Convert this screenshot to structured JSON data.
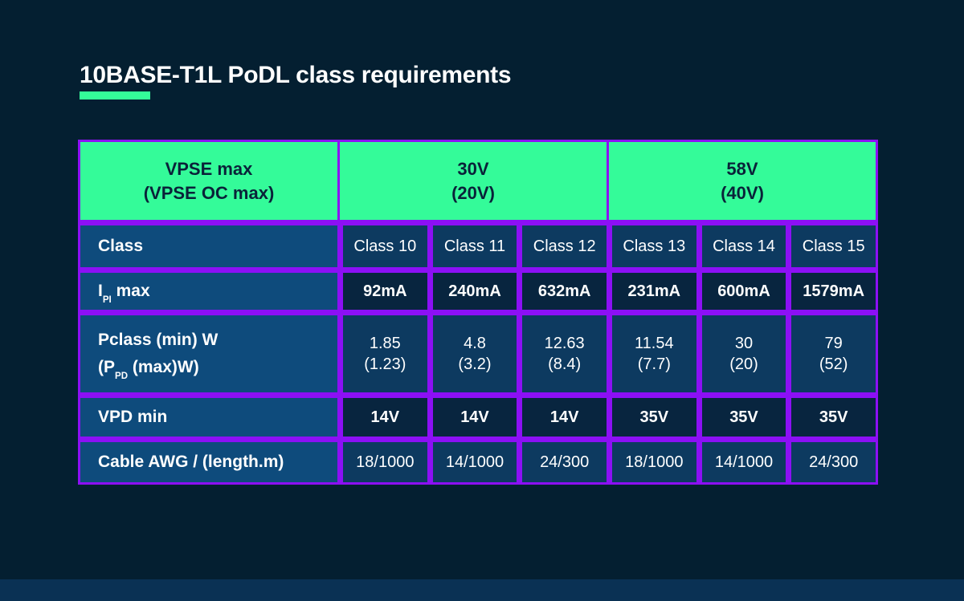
{
  "title": "10BASE-T1L PoDL class requirements",
  "colors": {
    "bg": "#041f31",
    "strip": "#0a3154",
    "green": "#34fb99",
    "purple": "#8c10f5",
    "labelblue": "#0e4b7c",
    "lightcell": "#0d3a60",
    "darkcell": "#08253f",
    "headtext": "#0a2239",
    "white": "#ffffff"
  },
  "table": {
    "header": {
      "col1": "VPSE max\n(VPSE OC max)",
      "col2": "30V\n(20V)",
      "col3": "58V\n(40V)"
    },
    "rows": [
      {
        "label": {
          "text": "Class"
        },
        "values": [
          "Class 10",
          "Class 11",
          "Class 12",
          "Class 13",
          "Class 14",
          "Class 15"
        ]
      },
      {
        "label": {
          "pre": "I",
          "sub": "PI",
          "post": " max"
        },
        "values": [
          "92mA",
          "240mA",
          "632mA",
          "231mA",
          "600mA",
          "1579mA"
        ]
      },
      {
        "label": {
          "line1": "Pclass (min) W",
          "line2_pre": "(P",
          "line2_sub": "PD",
          "line2_post": " (max)W)"
        },
        "values": [
          "1.85\n(1.23)",
          "4.8\n(3.2)",
          "12.63\n(8.4)",
          "11.54\n(7.7)",
          "30\n(20)",
          "79\n(52)"
        ]
      },
      {
        "label": {
          "text": "VPD min"
        },
        "values": [
          "14V",
          "14V",
          "14V",
          "35V",
          "35V",
          "35V"
        ]
      },
      {
        "label": {
          "text": "Cable AWG / (length.m)"
        },
        "values": [
          "18/1000",
          "14/1000",
          "24/300",
          "18/1000",
          "14/1000",
          "24/300"
        ]
      }
    ]
  }
}
